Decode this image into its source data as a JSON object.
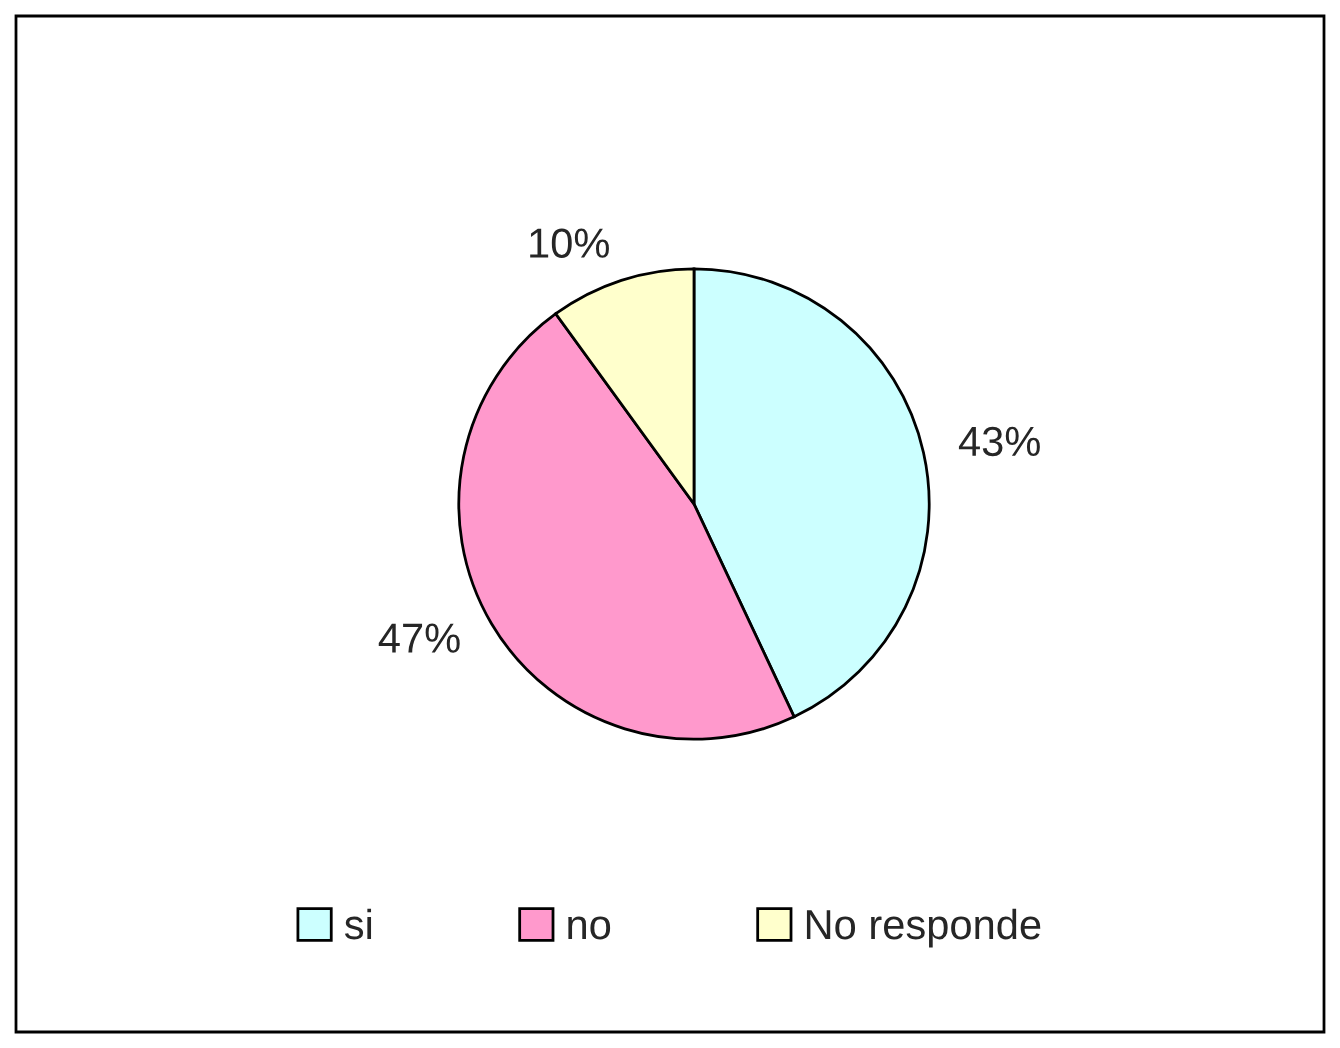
{
  "chart_data": {
    "type": "pie",
    "categories": [
      "si",
      "no",
      "No responde"
    ],
    "values": [
      43,
      47,
      10
    ],
    "colors": [
      "#ccffff",
      "#ff99cc",
      "#ffffcc"
    ],
    "value_labels": [
      "43%",
      "47%",
      "10%"
    ],
    "legend": "bottom"
  }
}
